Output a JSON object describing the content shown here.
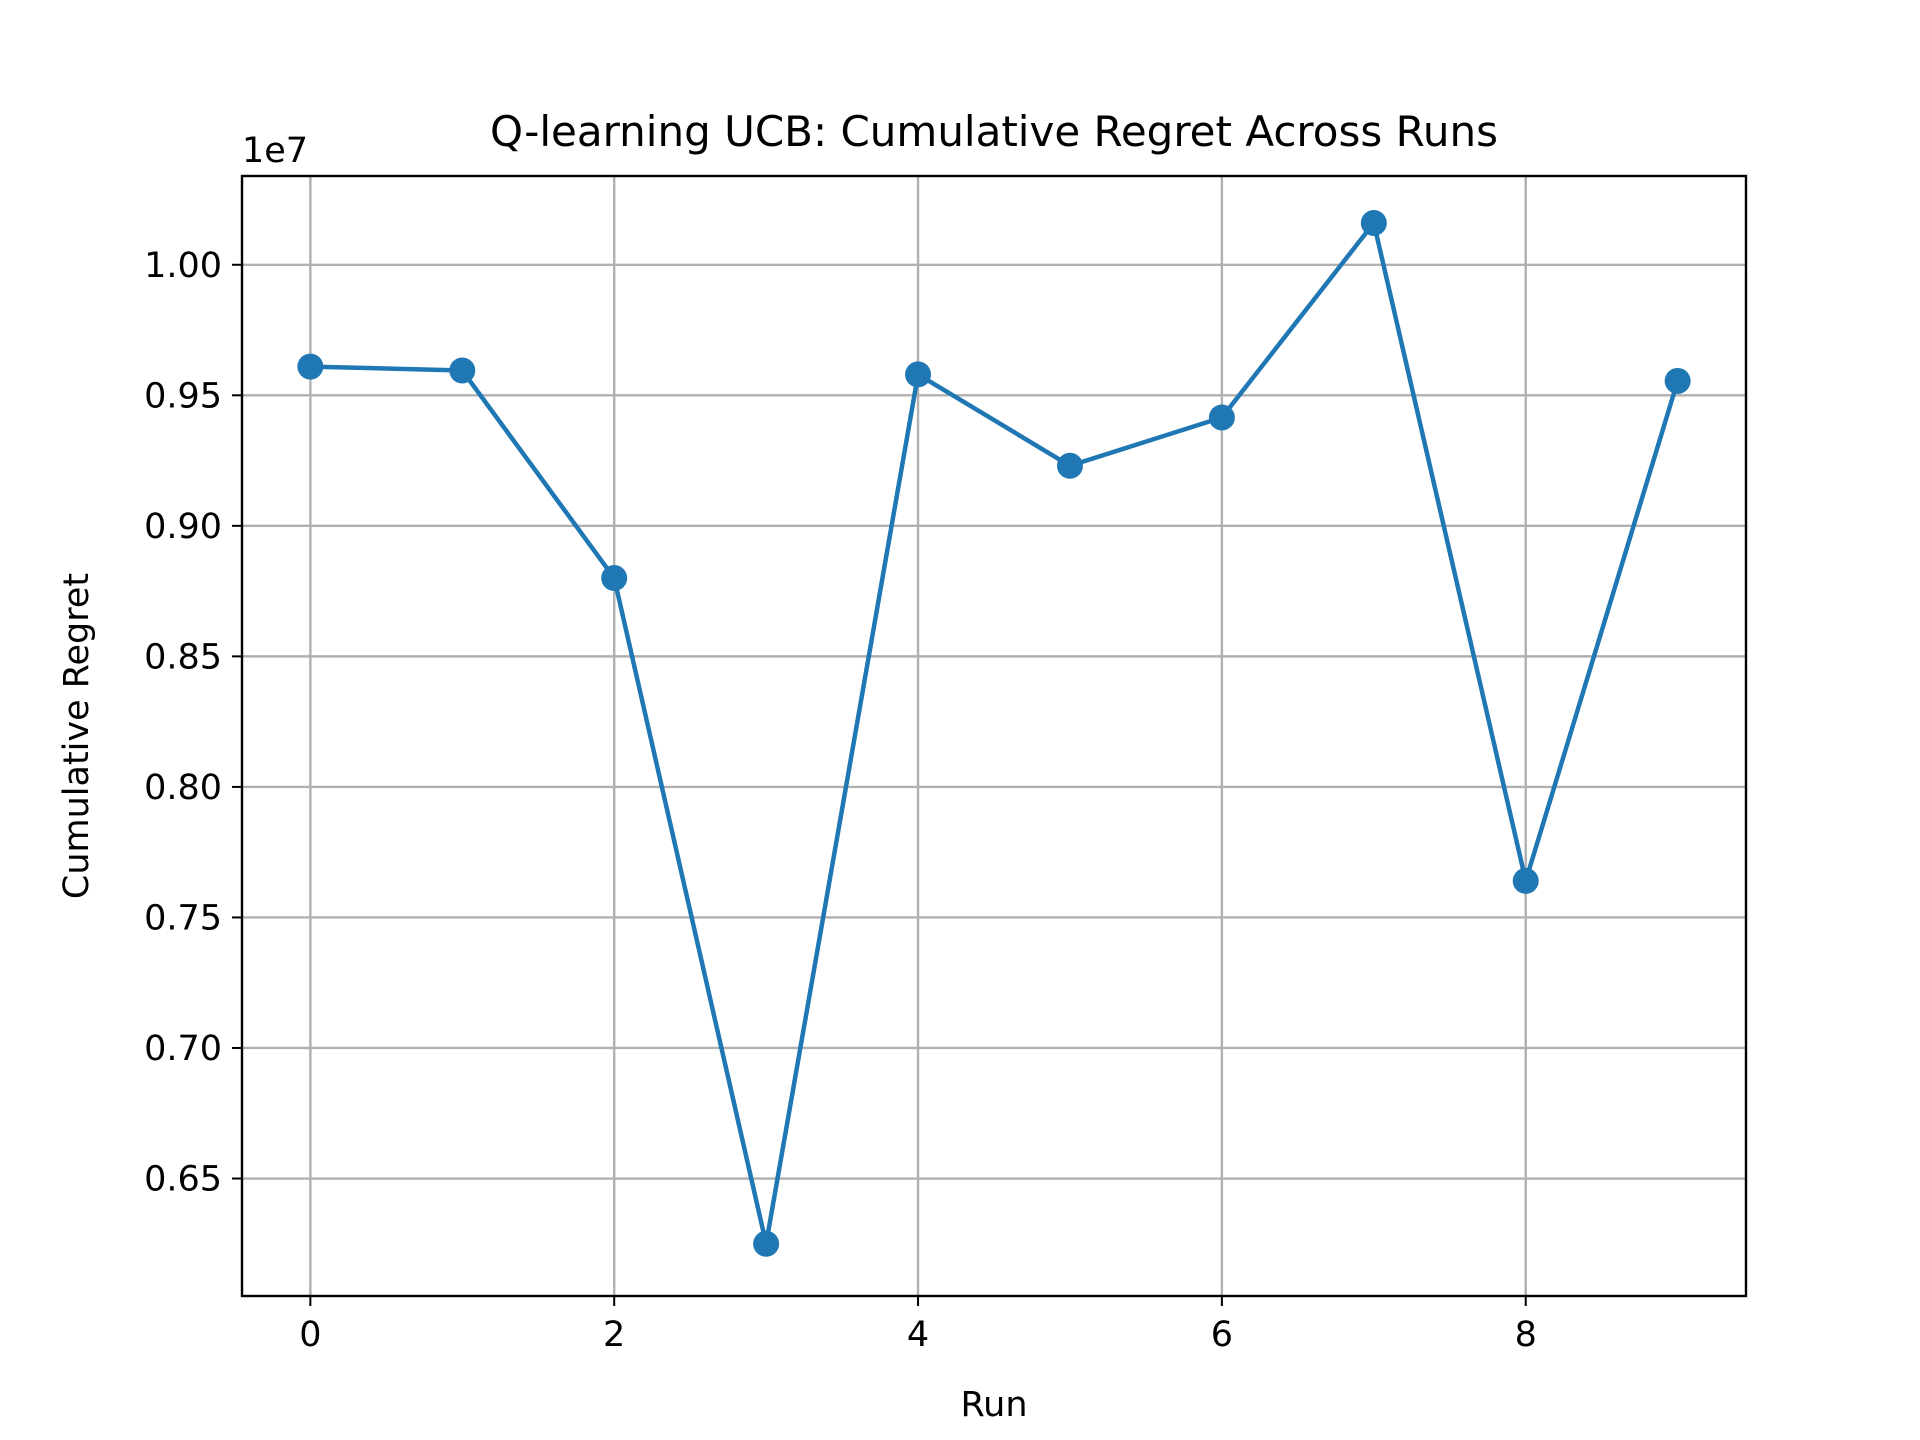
{
  "chart_data": {
    "type": "line",
    "title": "Q-learning UCB: Cumulative Regret Across Runs",
    "xlabel": "Run",
    "ylabel": "Cumulative Regret",
    "y_offset_label": "1e7",
    "x_ticks": [
      "0",
      "2",
      "4",
      "6",
      "8"
    ],
    "y_ticks": [
      "0.65",
      "0.70",
      "0.75",
      "0.80",
      "0.85",
      "0.90",
      "0.95",
      "1.00"
    ],
    "xlim": [
      -0.45,
      9.45
    ],
    "ylim": [
      0.605,
      1.034
    ],
    "grid": true,
    "marker": "circle",
    "color": "#1f77b4",
    "series": [
      {
        "x": [
          0,
          1,
          2,
          3,
          4,
          5,
          6,
          7,
          8,
          9
        ],
        "values": [
          0.961,
          0.9595,
          0.88,
          0.625,
          0.958,
          0.923,
          0.9415,
          1.016,
          0.764,
          0.9555
        ]
      }
    ]
  }
}
